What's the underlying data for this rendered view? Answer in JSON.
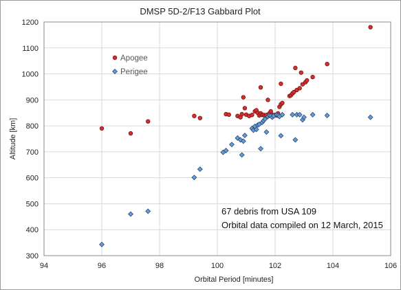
{
  "chart_data": {
    "type": "scatter",
    "title": "DMSP 5D-2/F13 Gabbard Plot",
    "xlabel": "Orbital Period [minutes]",
    "ylabel": "Altitude [km]",
    "xlim": [
      94,
      106
    ],
    "ylim": [
      300,
      1200
    ],
    "xticks": [
      94,
      96,
      98,
      100,
      102,
      104,
      106
    ],
    "yticks": [
      300,
      400,
      500,
      600,
      700,
      800,
      900,
      1000,
      1100,
      1200
    ],
    "grid": "horizontal-and-vertical",
    "legend_position": "upper-left",
    "series": [
      {
        "name": "Apogee",
        "marker": "circle",
        "color": "#d32f2f",
        "edge_color": "#7a1111",
        "points": [
          [
            96.0,
            790
          ],
          [
            97.0,
            771
          ],
          [
            97.6,
            817
          ],
          [
            99.2,
            838
          ],
          [
            99.4,
            830
          ],
          [
            100.3,
            845
          ],
          [
            100.4,
            843
          ],
          [
            100.7,
            838
          ],
          [
            100.8,
            833
          ],
          [
            100.85,
            845
          ],
          [
            100.9,
            910
          ],
          [
            100.95,
            868
          ],
          [
            101.0,
            843
          ],
          [
            101.1,
            838
          ],
          [
            101.2,
            842
          ],
          [
            101.3,
            856
          ],
          [
            101.35,
            860
          ],
          [
            101.4,
            850
          ],
          [
            101.45,
            840
          ],
          [
            101.5,
            848
          ],
          [
            101.5,
            948
          ],
          [
            101.55,
            842
          ],
          [
            101.6,
            842
          ],
          [
            101.65,
            838
          ],
          [
            101.7,
            842
          ],
          [
            101.75,
            900
          ],
          [
            101.8,
            848
          ],
          [
            101.85,
            856
          ],
          [
            101.9,
            843
          ],
          [
            102.0,
            842
          ],
          [
            102.05,
            840
          ],
          [
            102.1,
            848
          ],
          [
            102.15,
            873
          ],
          [
            102.2,
            883
          ],
          [
            102.2,
            962
          ],
          [
            102.25,
            888
          ],
          [
            102.5,
            915
          ],
          [
            102.55,
            918
          ],
          [
            102.6,
            925
          ],
          [
            102.65,
            930
          ],
          [
            102.7,
            1023
          ],
          [
            102.75,
            938
          ],
          [
            102.85,
            945
          ],
          [
            102.9,
            1005
          ],
          [
            102.95,
            960
          ],
          [
            103.05,
            968
          ],
          [
            103.1,
            975
          ],
          [
            103.3,
            988
          ],
          [
            103.8,
            1038
          ],
          [
            105.3,
            1180
          ]
        ]
      },
      {
        "name": "Perigee",
        "marker": "diamond",
        "color": "#6a9bd1",
        "edge_color": "#1f4a78",
        "points": [
          [
            96.0,
            343
          ],
          [
            97.0,
            460
          ],
          [
            97.6,
            471
          ],
          [
            99.2,
            601
          ],
          [
            99.4,
            633
          ],
          [
            100.2,
            698
          ],
          [
            100.3,
            705
          ],
          [
            100.5,
            728
          ],
          [
            100.7,
            753
          ],
          [
            100.8,
            746
          ],
          [
            100.85,
            688
          ],
          [
            100.9,
            741
          ],
          [
            100.95,
            763
          ],
          [
            101.2,
            790
          ],
          [
            101.25,
            783
          ],
          [
            101.3,
            798
          ],
          [
            101.35,
            786
          ],
          [
            101.4,
            803
          ],
          [
            101.45,
            806
          ],
          [
            101.5,
            712
          ],
          [
            101.55,
            813
          ],
          [
            101.6,
            820
          ],
          [
            101.65,
            826
          ],
          [
            101.7,
            776
          ],
          [
            101.75,
            836
          ],
          [
            101.8,
            840
          ],
          [
            101.85,
            838
          ],
          [
            101.9,
            833
          ],
          [
            101.95,
            838
          ],
          [
            102.05,
            842
          ],
          [
            102.1,
            840
          ],
          [
            102.15,
            836
          ],
          [
            102.2,
            762
          ],
          [
            102.25,
            843
          ],
          [
            102.6,
            843
          ],
          [
            102.7,
            746
          ],
          [
            102.75,
            843
          ],
          [
            102.85,
            843
          ],
          [
            102.95,
            823
          ],
          [
            103.0,
            833
          ],
          [
            103.3,
            843
          ],
          [
            103.8,
            840
          ],
          [
            105.3,
            833
          ]
        ]
      }
    ],
    "annotations": [
      "67 debris from USA 109",
      "Orbital data compiled on 12 March, 2015"
    ]
  }
}
